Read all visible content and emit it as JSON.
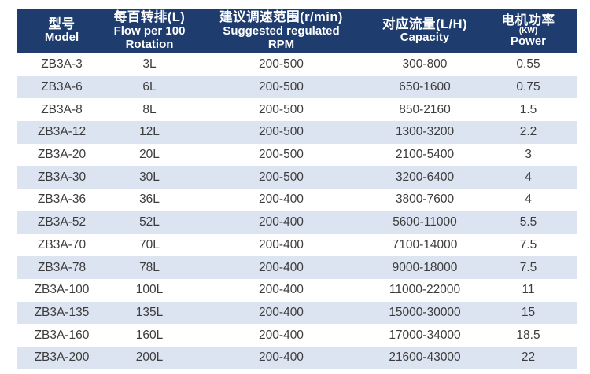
{
  "colors": {
    "header_bg": "#1e3c6e",
    "header_text": "#ffffff",
    "stripe_bg": "#dde4f1",
    "row_bg": "#ffffff",
    "cell_text": "#3c3c3c"
  },
  "header": {
    "col1": {
      "zh": "型号",
      "en": "Model"
    },
    "col2": {
      "zh": "每百转排(L)",
      "en1": "Flow per 100",
      "en2": "Rotation"
    },
    "col3": {
      "zh": "建议调速范围(r/min)",
      "en1": "Suggested regulated",
      "en2": "RPM"
    },
    "col4": {
      "zh": "对应流量(L/H)",
      "en": "Capacity"
    },
    "col5": {
      "zh": "电机功率",
      "sub": "(KW)",
      "en": "Power"
    }
  },
  "chart_data": {
    "type": "table",
    "title": "",
    "columns": [
      "型号 Model",
      "每百转排(L) Flow per 100 Rotation",
      "建议调速范围(r/min) Suggested regulated RPM",
      "对应流量(L/H) Capacity",
      "电机功率(KW) Power"
    ],
    "rows": [
      {
        "model": "ZB3A-3",
        "flow": "3L",
        "rpm": "200-500",
        "capacity": "300-800",
        "power": "0.55"
      },
      {
        "model": "ZB3A-6",
        "flow": "6L",
        "rpm": "200-500",
        "capacity": "650-1600",
        "power": "0.75"
      },
      {
        "model": "ZB3A-8",
        "flow": "8L",
        "rpm": "200-500",
        "capacity": "850-2160",
        "power": "1.5"
      },
      {
        "model": "ZB3A-12",
        "flow": "12L",
        "rpm": "200-500",
        "capacity": "1300-3200",
        "power": "2.2"
      },
      {
        "model": "ZB3A-20",
        "flow": "20L",
        "rpm": "200-500",
        "capacity": "2100-5400",
        "power": "3"
      },
      {
        "model": "ZB3A-30",
        "flow": "30L",
        "rpm": "200-500",
        "capacity": "3200-6400",
        "power": "4"
      },
      {
        "model": "ZB3A-36",
        "flow": "36L",
        "rpm": "200-400",
        "capacity": "3800-7600",
        "power": "4"
      },
      {
        "model": "ZB3A-52",
        "flow": "52L",
        "rpm": "200-400",
        "capacity": "5600-11000",
        "power": "5.5"
      },
      {
        "model": "ZB3A-70",
        "flow": "70L",
        "rpm": "200-400",
        "capacity": "7100-14000",
        "power": "7.5"
      },
      {
        "model": "ZB3A-78",
        "flow": "78L",
        "rpm": "200-400",
        "capacity": "9000-18000",
        "power": "7.5"
      },
      {
        "model": "ZB3A-100",
        "flow": "100L",
        "rpm": "200-400",
        "capacity": "11000-22000",
        "power": "11"
      },
      {
        "model": "ZB3A-135",
        "flow": "135L",
        "rpm": "200-400",
        "capacity": "15000-30000",
        "power": "15"
      },
      {
        "model": "ZB3A-160",
        "flow": "160L",
        "rpm": "200-400",
        "capacity": "17000-34000",
        "power": "18.5"
      },
      {
        "model": "ZB3A-200",
        "flow": "200L",
        "rpm": "200-400",
        "capacity": "21600-43000",
        "power": "22"
      }
    ]
  }
}
